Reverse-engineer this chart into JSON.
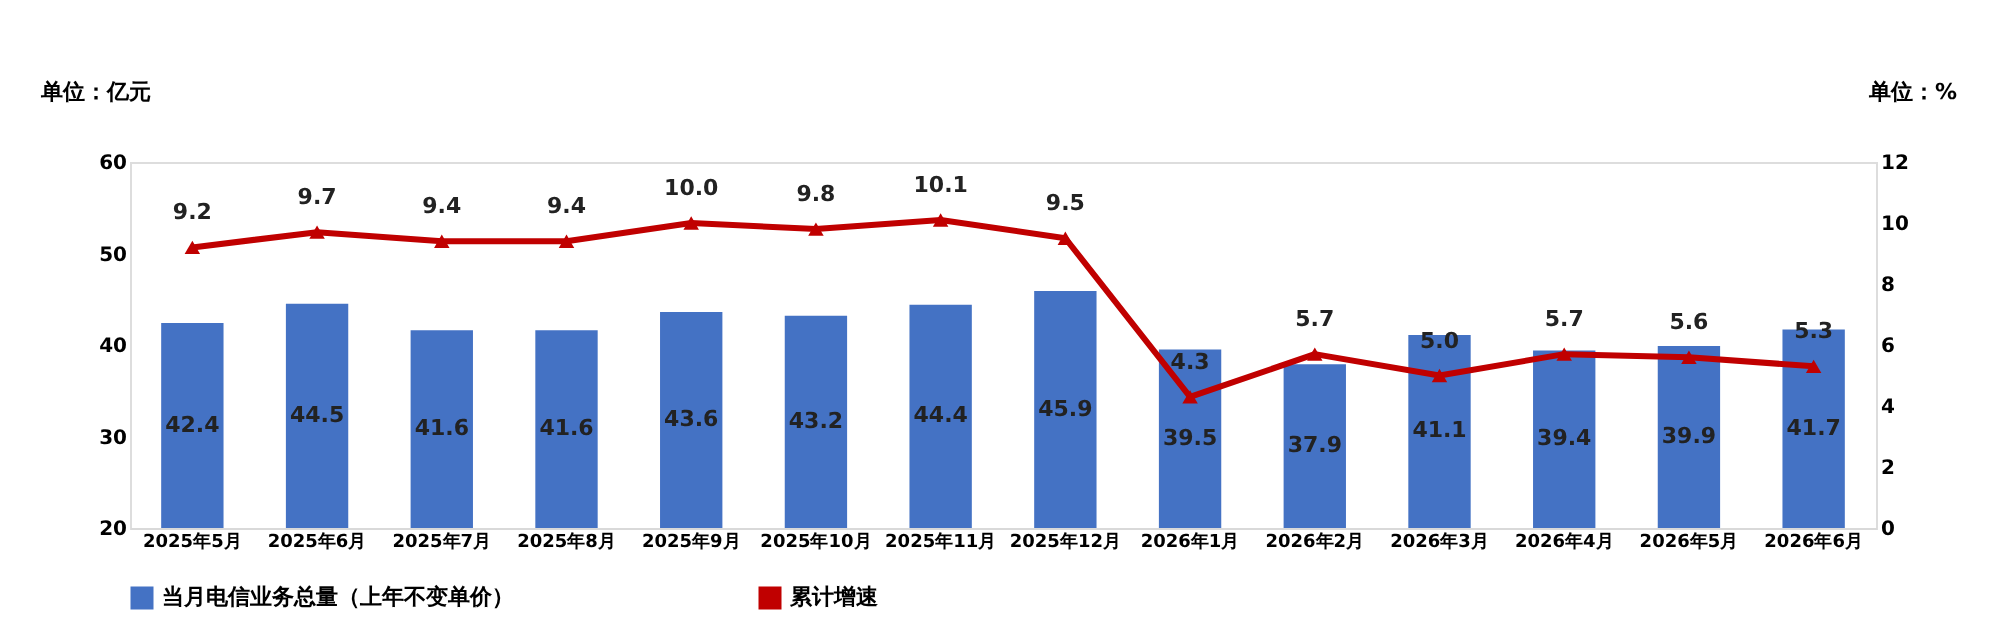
{
  "chart_data": {
    "type": "bar",
    "ylabel": "单位：亿元",
    "y2label": "单位：%",
    "categories": [
      "2025年5月",
      "2025年6月",
      "2025年7月",
      "2025年8月",
      "2025年9月",
      "2025年10月",
      "2025年11月",
      "2025年12月",
      "2026年1月",
      "2026年2月",
      "2026年3月",
      "2026年4月",
      "2026年5月",
      "2026年6月"
    ],
    "series": [
      {
        "name": "当月电信业务总量（上年不变单价）",
        "color": "#4472c4",
        "values": [
          42.4,
          44.5,
          41.6,
          41.6,
          43.6,
          43.2,
          44.4,
          45.9,
          39.5,
          37.9,
          41.1,
          39.4,
          39.9,
          41.7
        ]
      },
      {
        "name": "累计增速",
        "type": "line",
        "axis": "y2",
        "color": "#c00000",
        "marker": "triangle",
        "values": [
          9.2,
          9.7,
          9.4,
          9.4,
          10.0,
          9.8,
          10.1,
          9.5,
          4.3,
          5.7,
          5.0,
          5.7,
          5.6,
          5.3
        ],
        "value_labels": [
          "9.2",
          "9.7",
          "9.4",
          "9.4",
          "10.0",
          "9.8",
          "10.1",
          "9.5",
          "4.3",
          "5.7",
          "5.0",
          "5.7",
          "5.6",
          "5.3"
        ]
      }
    ],
    "ylim": [
      20,
      60
    ],
    "yticks": [
      20,
      30,
      40,
      50,
      60
    ],
    "y2lim": [
      0,
      12
    ],
    "y2ticks": [
      0,
      2,
      4,
      6,
      8,
      10,
      12
    ],
    "data_labels": true,
    "grid": false,
    "legend": "bottom"
  }
}
